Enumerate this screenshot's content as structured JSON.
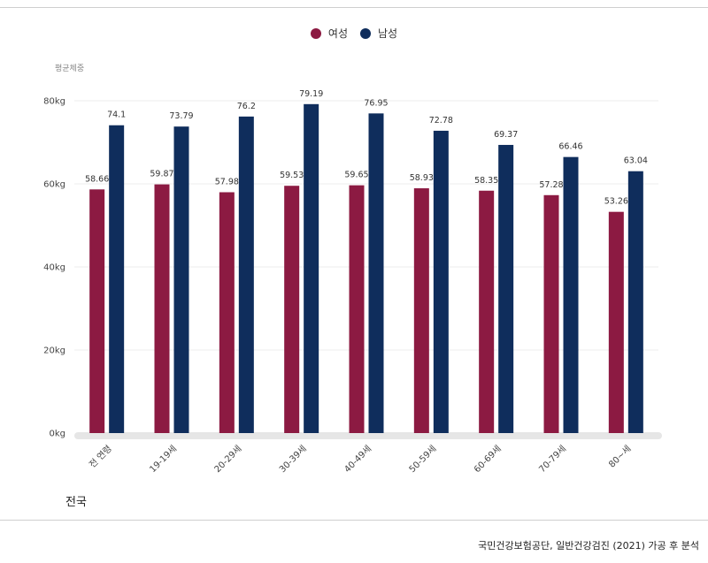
{
  "chart_data": {
    "type": "bar",
    "ylabel": "평균체중",
    "yticks": [
      "0kg",
      "20kg",
      "40kg",
      "60kg",
      "80kg"
    ],
    "ylim": [
      0,
      80
    ],
    "grid": true,
    "legend_position": "top-center",
    "categories": [
      "전 연령",
      "19-19세",
      "20-29세",
      "30-39세",
      "40-49세",
      "50-59세",
      "60-69세",
      "70-79세",
      "80~세"
    ],
    "series": [
      {
        "name": "여성",
        "color": "#8c1a42",
        "values": [
          58.66,
          59.87,
          57.98,
          59.53,
          59.65,
          58.93,
          58.35,
          57.28,
          53.26
        ]
      },
      {
        "name": "남성",
        "color": "#0f2d5c",
        "values": [
          74.1,
          73.79,
          76.2,
          79.19,
          76.95,
          72.78,
          69.37,
          66.46,
          63.04
        ]
      }
    ]
  },
  "footer": {
    "region": "전국",
    "source": "국민건강보험공단, 일반건강검진 (2021) 가공 후 분석"
  }
}
